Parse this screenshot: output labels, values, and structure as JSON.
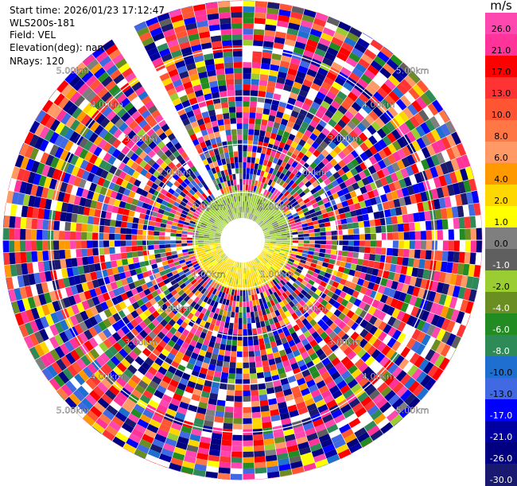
{
  "header": {
    "start_time": "Start time: 2026/01/23 17:12:47",
    "instrument": "WLS200s-181",
    "field": "Field: VEL",
    "elevation": "Elevation(deg): nan",
    "nrays": "NRays: 120"
  },
  "chart_data": {
    "type": "heatmap",
    "projection": "polar-ppi",
    "n_rays": 120,
    "range_unit": "km",
    "range_rings": [
      {
        "value": 1.0,
        "label": "1.00km"
      },
      {
        "value": 2.0,
        "label": "2.00km"
      },
      {
        "value": 3.0,
        "label": "3.00km"
      },
      {
        "value": 4.0,
        "label": "4.00km"
      },
      {
        "value": 5.0,
        "label": "5.00km"
      }
    ],
    "max_range": 5.0,
    "blocked_sector_deg": [
      326,
      333
    ],
    "colorbar": {
      "unit": "m/s",
      "ticks": [
        "26.0",
        "21.0",
        "17.0",
        "13.0",
        "10.0",
        "8.0",
        "6.0",
        "4.0",
        "2.0",
        "1.0",
        "0.0",
        "-1.0",
        "-2.0",
        "-4.0",
        "-6.0",
        "-8.0",
        "-10.0",
        "-13.0",
        "-17.0",
        "-21.0",
        "-26.0",
        "-30.0"
      ],
      "colors": [
        "#ff47b0",
        "#ff3399",
        "#ff0000",
        "#ff3333",
        "#ff5533",
        "#ff7744",
        "#ff9966",
        "#ff9900",
        "#ffd700",
        "#ffff00",
        "#7f7f7f",
        "#5f5f5f",
        "#9acd32",
        "#6b8e23",
        "#228b22",
        "#2e8b57",
        "#1e6fd0",
        "#4169e1",
        "#0000ff",
        "#0000a0",
        "#000080",
        "#191970"
      ]
    }
  }
}
